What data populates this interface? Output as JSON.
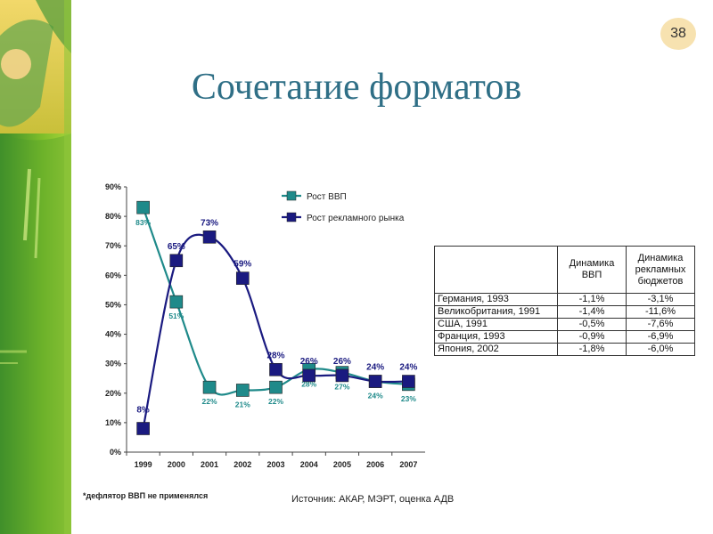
{
  "page_number": "38",
  "title": "Сочетание форматов",
  "footnote": "*дефлятор ВВП не применялся",
  "source": "Источник: АКАР, МЭРТ, оценка АДВ",
  "colors": {
    "gdp": "#1f8a8a",
    "ad": "#1a1a80",
    "title": "#2f6f86"
  },
  "chart_data": {
    "type": "line",
    "x": [
      "1999",
      "2000",
      "2001",
      "2002",
      "2003",
      "2004",
      "2005",
      "2006",
      "2007"
    ],
    "ylim": [
      0,
      90
    ],
    "yticks": [
      "0%",
      "10%",
      "20%",
      "30%",
      "40%",
      "50%",
      "60%",
      "70%",
      "80%",
      "90%"
    ],
    "grid": false,
    "legend_position": "top-right",
    "series": [
      {
        "name": "Рост ВВП",
        "values": [
          83,
          51,
          22,
          21,
          22,
          28,
          27,
          24,
          23
        ],
        "labels": [
          "83%",
          "51%",
          "22%",
          "21%",
          "22%",
          "28%",
          "27%",
          "24%",
          "23%"
        ]
      },
      {
        "name": "Рост рекламного рынка",
        "values": [
          8,
          65,
          73,
          59,
          28,
          26,
          26,
          24,
          24
        ],
        "labels": [
          "8%",
          "65%",
          "73%",
          "59%",
          "28%",
          "26%",
          "26%",
          "24%",
          "24%"
        ]
      }
    ]
  },
  "table": {
    "headers": [
      "",
      "Динамика ВВП",
      "Динамика рекламных бюджетов"
    ],
    "rows": [
      {
        "country": "Германия, 1993",
        "gdp": "-1,1%",
        "budget": "-3,1%"
      },
      {
        "country": "Великобритания, 1991",
        "gdp": "-1,4%",
        "budget": "-11,6%"
      },
      {
        "country": "США, 1991",
        "gdp": "-0,5%",
        "budget": "-7,6%"
      },
      {
        "country": "Франция, 1993",
        "gdp": "-0,9%",
        "budget": "-6,9%"
      },
      {
        "country": "Япония, 2002",
        "gdp": "-1,8%",
        "budget": "-6,0%"
      }
    ]
  }
}
